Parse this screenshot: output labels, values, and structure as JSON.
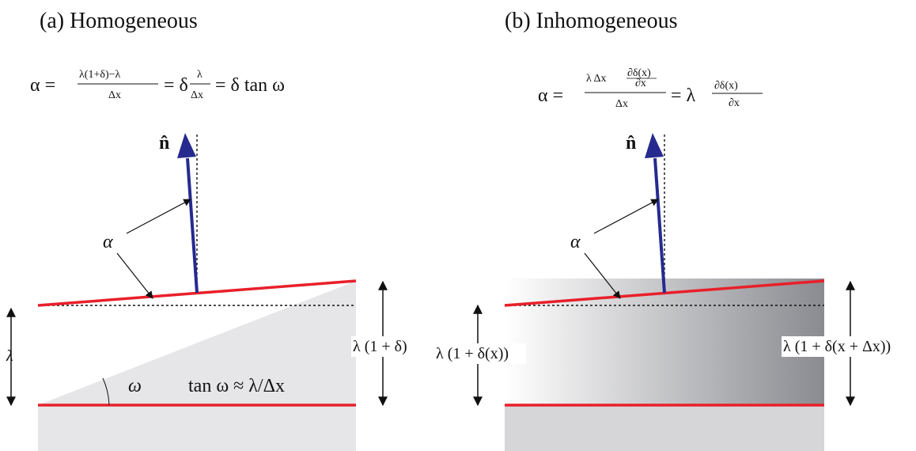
{
  "panel_a": {
    "title": "(a)   Homogeneous",
    "equation": "α = (λ(1+δ) − λ)/Δx = δ λ/Δx = δ tan ω",
    "eq_parts": {
      "alpha_eq": "α =",
      "frac1_num": "λ(1+δ)−λ",
      "frac1_den": "Δx",
      "mid": "= δ",
      "frac2_num": "λ",
      "frac2_den": "Δx",
      "tail": "= δ tan ω"
    },
    "normal_label": "n̂",
    "alpha_label": "α",
    "lambda_label": "λ",
    "right_label": "λ (1 + δ)",
    "omega_label": "ω",
    "tan_label": "tan ω ≈ λ/Δx"
  },
  "panel_b": {
    "title": "(b)   Inhomogeneous",
    "eq_parts": {
      "alpha_eq": "α =",
      "frac1_num": "λ Δx",
      "frac1_inner_num": "∂δ(x)",
      "frac1_inner_den": "∂x",
      "frac1_den": "Δx",
      "mid": "= λ",
      "frac2_num": "∂δ(x)",
      "frac2_den": "∂x"
    },
    "normal_label": "n̂",
    "alpha_label": "α",
    "left_label": "λ (1 + δ(x))",
    "right_label": "λ (1 + δ(x + Δx))"
  },
  "colors": {
    "red": "#e8202a",
    "arrow_blue": "#262a8f",
    "grey_fill": "#e6e6e8",
    "grad_dark": "#8a8b90"
  }
}
